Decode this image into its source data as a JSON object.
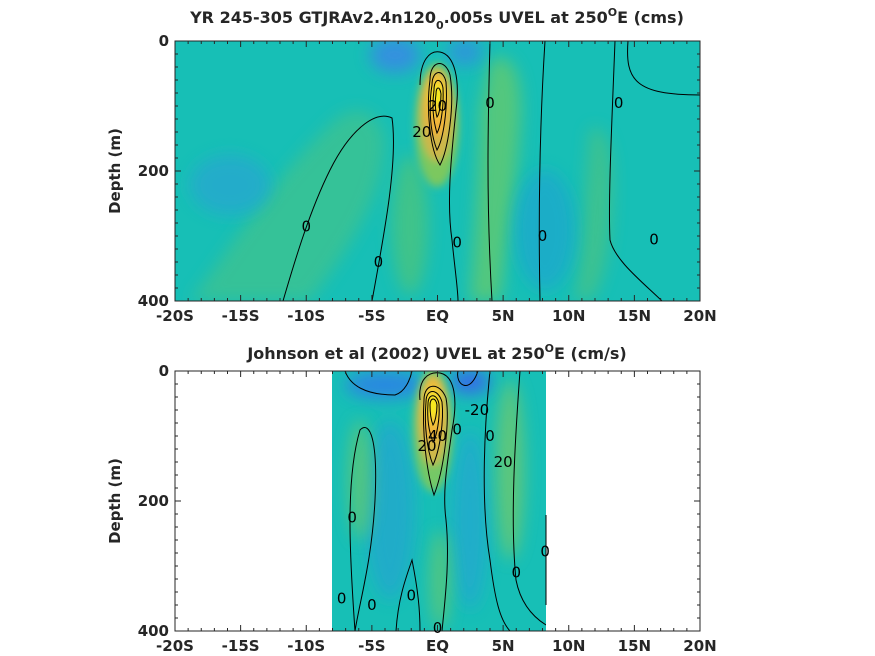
{
  "chart_data": [
    {
      "type": "heatmap",
      "title": "YR 245-305 GTJRAv2.4n120",
      "title_sub": "0",
      "title_rest": ".005s UVEL at 250",
      "title_sup": "O",
      "title_end": "E (cms)",
      "ylabel": "Depth (m)",
      "xlim": [
        -20,
        20
      ],
      "ylim": [
        0,
        400
      ],
      "x_ticks": [
        -20,
        -15,
        -10,
        -5,
        0,
        5,
        10,
        15,
        20
      ],
      "x_tick_labels": [
        "-20S",
        "-15S",
        "-10S",
        "-5S",
        "EQ",
        "5N",
        "10N",
        "15N",
        "20N"
      ],
      "y_ticks": [
        0,
        200,
        400
      ],
      "y_tick_labels": [
        "0",
        "200",
        "400"
      ],
      "data_extent_x": [
        -20,
        20
      ],
      "core": {
        "x": 0,
        "depth": 90,
        "max_speed": 70
      },
      "contour_labels": [
        {
          "text": "0",
          "x": -10,
          "depth": 285
        },
        {
          "text": "0",
          "x": -4.5,
          "depth": 340
        },
        {
          "text": "0",
          "x": 1.5,
          "depth": 310
        },
        {
          "text": "0",
          "x": 4,
          "depth": 95
        },
        {
          "text": "0",
          "x": 8,
          "depth": 300
        },
        {
          "text": "0",
          "x": 13.8,
          "depth": 95
        },
        {
          "text": "0",
          "x": 16.5,
          "depth": 305
        },
        {
          "text": "20",
          "x": -1.2,
          "depth": 140
        },
        {
          "text": "20",
          "x": 0,
          "depth": 100
        }
      ]
    },
    {
      "type": "heatmap",
      "title": "Johnson et al (2002) UVEL at 250",
      "title_sup": "O",
      "title_end": "E (cm/s)",
      "ylabel": "Depth (m)",
      "xlim": [
        -20,
        20
      ],
      "ylim": [
        0,
        400
      ],
      "x_ticks": [
        -20,
        -15,
        -10,
        -5,
        0,
        5,
        10,
        15,
        20
      ],
      "x_tick_labels": [
        "-20S",
        "-15S",
        "-10S",
        "-5S",
        "EQ",
        "5N",
        "10N",
        "15N",
        "20N"
      ],
      "y_ticks": [
        0,
        200,
        400
      ],
      "y_tick_labels": [
        "0",
        "200",
        "400"
      ],
      "data_extent_x": [
        -8,
        8.3
      ],
      "core": {
        "x": 0,
        "depth": 70,
        "max_speed": 80
      },
      "contour_labels": [
        {
          "text": "0",
          "x": -6.5,
          "depth": 225
        },
        {
          "text": "0",
          "x": -7.3,
          "depth": 350
        },
        {
          "text": "0",
          "x": -5,
          "depth": 360
        },
        {
          "text": "0",
          "x": -2,
          "depth": 345
        },
        {
          "text": "0",
          "x": 1.5,
          "depth": 90
        },
        {
          "text": "0",
          "x": 4,
          "depth": 100
        },
        {
          "text": "0",
          "x": 6,
          "depth": 310
        },
        {
          "text": "0",
          "x": 8.2,
          "depth": 278
        },
        {
          "text": "0",
          "x": 0,
          "depth": 395
        },
        {
          "text": "-20",
          "x": 3,
          "depth": 60
        },
        {
          "text": "20",
          "x": 5,
          "depth": 140
        },
        {
          "text": "20",
          "x": -0.8,
          "depth": 115
        },
        {
          "text": "40",
          "x": 0,
          "depth": 100
        }
      ]
    }
  ],
  "colors": {
    "background": "#17bfb6",
    "negative": "#3b86e8",
    "weak_positive": "#6cc96a",
    "mid_positive": "#d9b93a",
    "core": "#f8f80f",
    "contour": "#000000"
  }
}
